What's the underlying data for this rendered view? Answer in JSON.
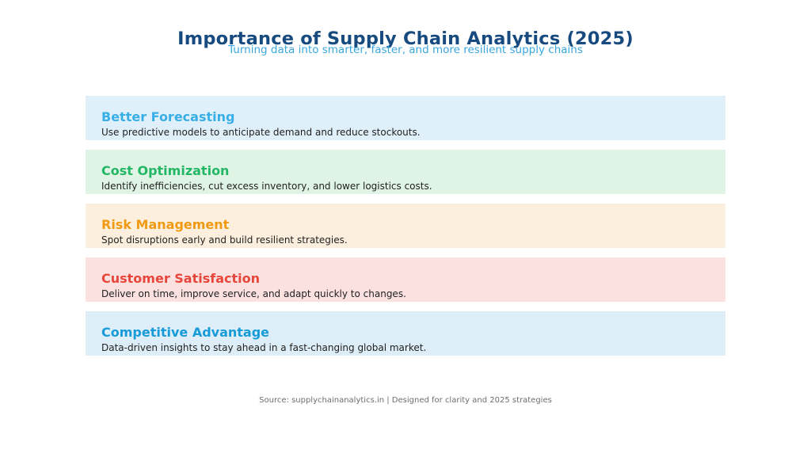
{
  "header": {
    "title": "Importance of Supply Chain Analytics (2025)",
    "subtitle": "Turning data into smarter, faster, and more resilient supply chains"
  },
  "cards": [
    {
      "title": "Better Forecasting",
      "description": "Use predictive models to anticipate demand and reduce stockouts.",
      "title_color": "#38aee6",
      "bg_color": "#e0f0fb"
    },
    {
      "title": "Cost Optimization",
      "description": "Identify inefficiencies, cut excess inventory, and lower logistics costs.",
      "title_color": "#22b765",
      "bg_color": "#dff4e5"
    },
    {
      "title": "Risk Management",
      "description": "Spot disruptions early and build resilient strategies.",
      "title_color": "#f09a12",
      "bg_color": "#fcefdd"
    },
    {
      "title": "Customer Satisfaction",
      "description": "Deliver on time, improve service, and adapt quickly to changes.",
      "title_color": "#e6463c",
      "bg_color": "#fbe2e1"
    },
    {
      "title": "Competitive Advantage",
      "description": "Data-driven insights to stay ahead in a fast-changing global market.",
      "title_color": "#169bd8",
      "bg_color": "#deeef9"
    }
  ],
  "footer": {
    "text": "Source: supplychainanalytics.in | Designed for clarity and 2025 strategies"
  },
  "colors": {
    "title": "#174a7e",
    "subtitle": "#3aa7df",
    "footer": "#6e6e6e"
  }
}
